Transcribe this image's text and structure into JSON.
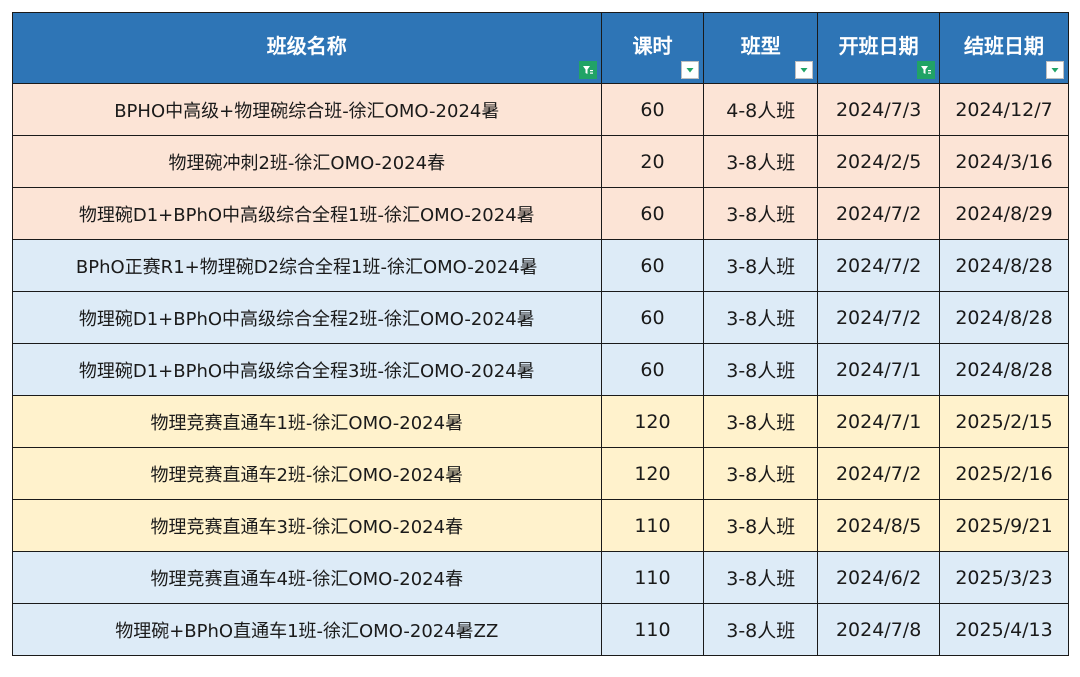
{
  "headers": [
    {
      "label": "班级名称",
      "filter_state": "filtered"
    },
    {
      "label": "课时",
      "filter_state": "dropdown"
    },
    {
      "label": "班型",
      "filter_state": "dropdown"
    },
    {
      "label": "开班日期",
      "filter_state": "filtered"
    },
    {
      "label": "结班日期",
      "filter_state": "dropdown"
    }
  ],
  "colors": {
    "header_bg": "#2e75b6",
    "header_text": "#ffffff",
    "row_pink": "#fce4d6",
    "row_blue": "#ddebf7",
    "row_yellow": "#fff2cc",
    "filter_active": "#21a366",
    "filter_arrow": "#21a366",
    "border": "#1a1a1a"
  },
  "rows": [
    {
      "name": "BPHO中高级+物理碗综合班-徐汇OMO-2024暑",
      "hours": "60",
      "type": "4-8人班",
      "start": "2024/7/3",
      "end": "2024/12/7",
      "color": "row_pink"
    },
    {
      "name": "物理碗冲刺2班-徐汇OMO-2024春",
      "hours": "20",
      "type": "3-8人班",
      "start": "2024/2/5",
      "end": "2024/3/16",
      "color": "row_pink"
    },
    {
      "name": "物理碗D1+BPhO中高级综合全程1班-徐汇OMO-2024暑",
      "hours": "60",
      "type": "3-8人班",
      "start": "2024/7/2",
      "end": "2024/8/29",
      "color": "row_pink"
    },
    {
      "name": "BPhO正赛R1+物理碗D2综合全程1班-徐汇OMO-2024暑",
      "hours": "60",
      "type": "3-8人班",
      "start": "2024/7/2",
      "end": "2024/8/28",
      "color": "row_blue"
    },
    {
      "name": "物理碗D1+BPhO中高级综合全程2班-徐汇OMO-2024暑",
      "hours": "60",
      "type": "3-8人班",
      "start": "2024/7/2",
      "end": "2024/8/28",
      "color": "row_blue"
    },
    {
      "name": "物理碗D1+BPhO中高级综合全程3班-徐汇OMO-2024暑",
      "hours": "60",
      "type": "3-8人班",
      "start": "2024/7/1",
      "end": "2024/8/28",
      "color": "row_blue"
    },
    {
      "name": "物理竞赛直通车1班-徐汇OMO-2024暑",
      "hours": "120",
      "type": "3-8人班",
      "start": "2024/7/1",
      "end": "2025/2/15",
      "color": "row_yellow"
    },
    {
      "name": "物理竞赛直通车2班-徐汇OMO-2024暑",
      "hours": "120",
      "type": "3-8人班",
      "start": "2024/7/2",
      "end": "2025/2/16",
      "color": "row_yellow"
    },
    {
      "name": "物理竞赛直通车3班-徐汇OMO-2024春",
      "hours": "110",
      "type": "3-8人班",
      "start": "2024/8/5",
      "end": "2025/9/21",
      "color": "row_yellow"
    },
    {
      "name": "物理竞赛直通车4班-徐汇OMO-2024春",
      "hours": "110",
      "type": "3-8人班",
      "start": "2024/6/2",
      "end": "2025/3/23",
      "color": "row_blue"
    },
    {
      "name": "物理碗+BPhO直通车1班-徐汇OMO-2024暑ZZ",
      "hours": "110",
      "type": "3-8人班",
      "start": "2024/7/8",
      "end": "2025/4/13",
      "color": "row_blue"
    }
  ]
}
